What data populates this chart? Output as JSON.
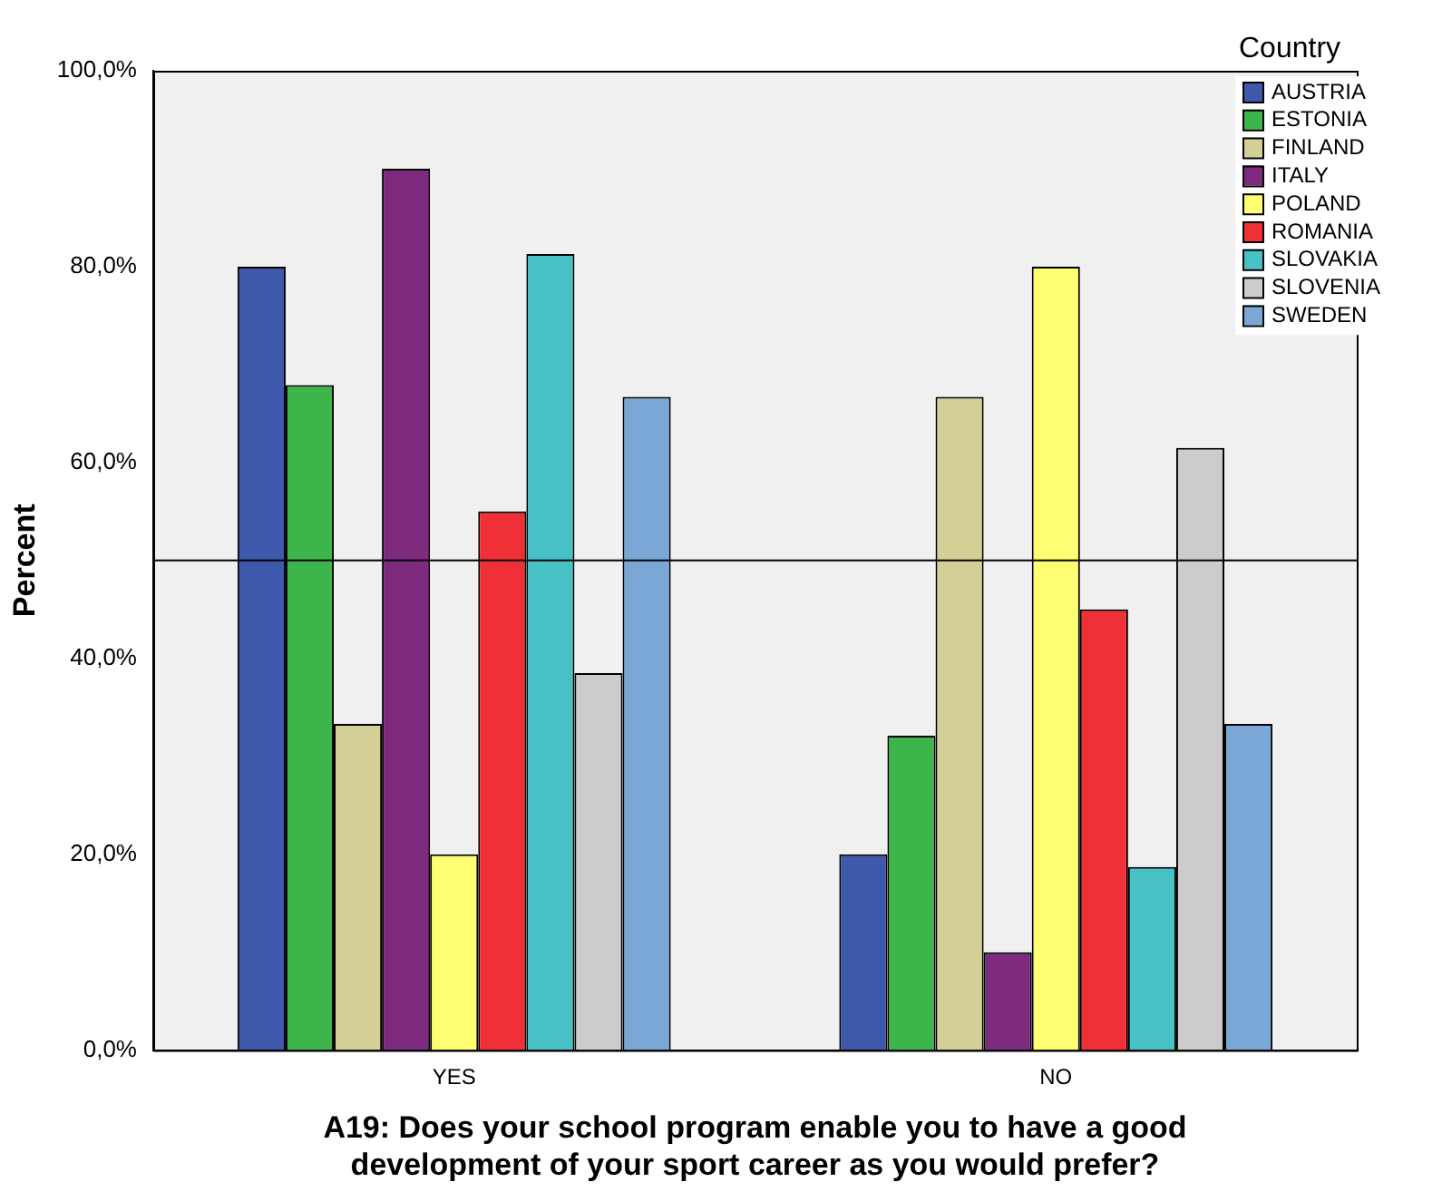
{
  "chart_data": {
    "type": "bar",
    "categories": [
      "YES",
      "NO"
    ],
    "xlabel": "A19: Does your school program enable you to have a good development of your sport career as you would prefer?",
    "ylabel": "Percent",
    "legend_title": "Country",
    "legend": "top right",
    "ylim": [
      0,
      100
    ],
    "yticks": [
      {
        "value": 0,
        "label": "0,0%"
      },
      {
        "value": 20,
        "label": "20,0%"
      },
      {
        "value": 40,
        "label": "40,0%"
      },
      {
        "value": 60,
        "label": "60,0%"
      },
      {
        "value": 80,
        "label": "80,0%"
      },
      {
        "value": 100,
        "label": "100,0%"
      }
    ],
    "ref_lines": [
      {
        "axis": "y",
        "value": 50,
        "color": "#000000"
      }
    ],
    "series": [
      {
        "name": "AUSTRIA",
        "color": "#3e58ac",
        "values": [
          80,
          20
        ]
      },
      {
        "name": "ESTONIA",
        "color": "#3cb54a",
        "values": [
          67.9,
          32.1
        ]
      },
      {
        "name": "FINLAND",
        "color": "#d4cf97",
        "values": [
          33.3,
          66.7
        ]
      },
      {
        "name": "ITALY",
        "color": "#7e2a7f",
        "values": [
          90,
          10
        ]
      },
      {
        "name": "POLAND",
        "color": "#fdfe72",
        "values": [
          20,
          80
        ]
      },
      {
        "name": "ROMANIA",
        "color": "#ef3137",
        "values": [
          55,
          45
        ]
      },
      {
        "name": "SLOVAKIA",
        "color": "#47c1c6",
        "values": [
          81.3,
          18.7
        ]
      },
      {
        "name": "SLOVENIA",
        "color": "#cccccc",
        "values": [
          38.5,
          61.5
        ]
      },
      {
        "name": "SWEDEN",
        "color": "#7ba7d6",
        "values": [
          66.7,
          33.3
        ]
      }
    ]
  }
}
